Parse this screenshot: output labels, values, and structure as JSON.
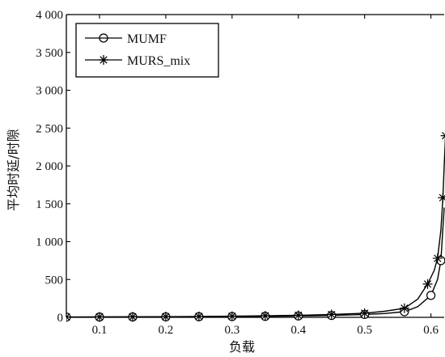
{
  "chart_data": {
    "type": "line",
    "xlabel": "负载",
    "ylabel": "平均时延/时隙",
    "xlim": [
      0.05,
      0.62
    ],
    "ylim": [
      0,
      4000
    ],
    "xticks": [
      0.1,
      0.2,
      0.3,
      0.4,
      0.5,
      0.6
    ],
    "xtick_labels": [
      "0.1",
      "0.2",
      "0.3",
      "0.4",
      "0.5",
      "0.6"
    ],
    "yticks": [
      0,
      500,
      1000,
      1500,
      2000,
      2500,
      3000,
      3500,
      4000
    ],
    "ytick_labels": [
      "0",
      "500",
      "1 000",
      "1 500",
      "2 000",
      "2 500",
      "3 000",
      "3 500",
      "4 000"
    ],
    "grid": false,
    "legend_position": "top-left",
    "series": [
      {
        "name": "MUMF",
        "marker": "circle",
        "x": [
          0.05,
          0.1,
          0.15,
          0.2,
          0.25,
          0.3,
          0.35,
          0.4,
          0.45,
          0.5,
          0.56,
          0.6,
          0.615
        ],
        "y": [
          3,
          4,
          5,
          6,
          8,
          10,
          13,
          18,
          25,
          38,
          75,
          290,
          750
        ],
        "curve": {
          "x": [
            0.05,
            0.1,
            0.15,
            0.2,
            0.25,
            0.3,
            0.35,
            0.4,
            0.45,
            0.5,
            0.53,
            0.56,
            0.58,
            0.6,
            0.61,
            0.615,
            0.62
          ],
          "y": [
            3,
            4,
            5,
            6,
            8,
            10,
            13,
            18,
            25,
            38,
            50,
            75,
            140,
            290,
            500,
            750,
            1450
          ]
        }
      },
      {
        "name": "MURS_mix",
        "marker": "star",
        "x": [
          0.05,
          0.1,
          0.15,
          0.2,
          0.25,
          0.3,
          0.35,
          0.4,
          0.45,
          0.5,
          0.56,
          0.595,
          0.61,
          0.618,
          0.622
        ],
        "y": [
          4,
          6,
          7,
          9,
          12,
          15,
          20,
          27,
          38,
          55,
          120,
          440,
          780,
          1580,
          2400
        ],
        "curve": {
          "x": [
            0.05,
            0.1,
            0.15,
            0.2,
            0.25,
            0.3,
            0.35,
            0.4,
            0.45,
            0.5,
            0.53,
            0.56,
            0.58,
            0.595,
            0.605,
            0.61,
            0.615,
            0.618,
            0.62,
            0.622
          ],
          "y": [
            4,
            6,
            7,
            9,
            12,
            15,
            20,
            27,
            38,
            55,
            80,
            120,
            240,
            440,
            620,
            780,
            1150,
            1580,
            2000,
            2400
          ]
        }
      }
    ]
  }
}
